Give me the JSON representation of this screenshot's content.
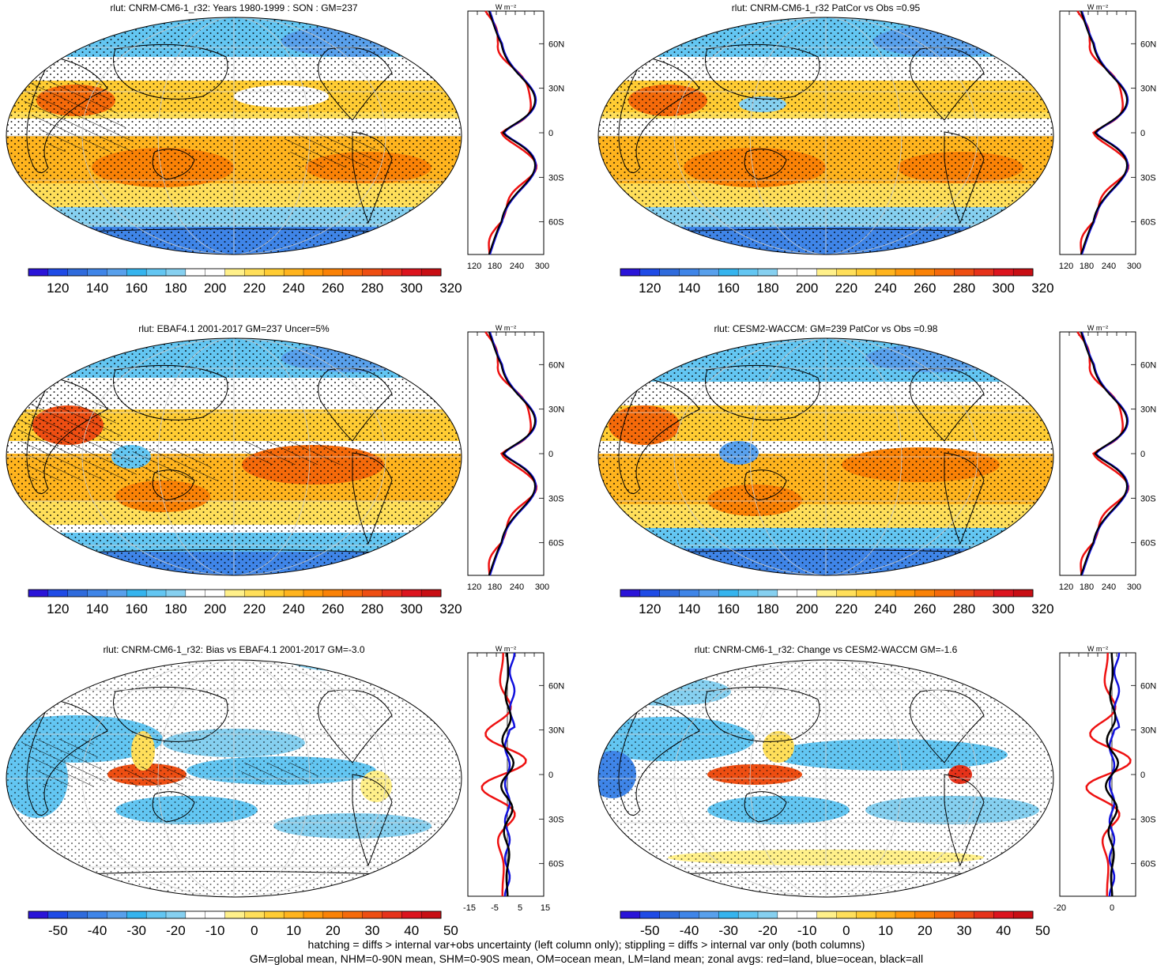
{
  "panels": [
    {
      "id": "p1",
      "title": "rlut: CNRM-CM6-1_r32: Years 1980-1999 : SON : GM=237",
      "kind": "abs",
      "stipple": true,
      "hatch": true
    },
    {
      "id": "p2",
      "title": "rlut: CNRM-CM6-1_r32 PatCor vs Obs =0.95",
      "kind": "abs",
      "stipple": true,
      "hatch": false
    },
    {
      "id": "p3",
      "title": "rlut: EBAF4.1 2001-2017 GM=237 Uncer=5%",
      "kind": "abs",
      "stipple": true,
      "hatch": true
    },
    {
      "id": "p4",
      "title": "rlut: CESM2-WACCM: GM=239 PatCor vs Obs =0.98",
      "kind": "abs",
      "stipple": true,
      "hatch": false
    },
    {
      "id": "p5",
      "title": "rlut: CNRM-CM6-1_r32: Bias vs EBAF4.1 2001-2017  GM=-3.0",
      "kind": "diff",
      "stipple": true,
      "hatch": true
    },
    {
      "id": "p6",
      "title": "rlut: CNRM-CM6-1_r32: Change vs CESM2-WACCM GM=-1.6",
      "kind": "diff",
      "stipple": true,
      "hatch": false
    }
  ],
  "profile_unit": "W m⁻²",
  "lat_labels": [
    "60N",
    "30N",
    "0",
    "30S",
    "60S"
  ],
  "profile_x_abs": [
    "120",
    "180",
    "240",
    "300"
  ],
  "profile_x_bias": [
    "-15",
    "-5",
    "5",
    "15"
  ],
  "profile_x_change": [
    "-20",
    "0"
  ],
  "colorbar_abs": {
    "labels": [
      "120",
      "140",
      "160",
      "180",
      "200",
      "220",
      "240",
      "260",
      "280",
      "300",
      "320"
    ],
    "colors": [
      "#2a14d8",
      "#1f4be6",
      "#2f6bdc",
      "#3f85e8",
      "#58a0ec",
      "#35b4ee",
      "#63c6f2",
      "#86d0f0",
      "#ffffff",
      "#ffffff",
      "#fff08a",
      "#ffdf5a",
      "#ffcc33",
      "#ffb41e",
      "#ff9a0c",
      "#fa8206",
      "#f56a0a",
      "#ee4e12",
      "#e6321a",
      "#dc141e",
      "#c80e14"
    ]
  },
  "colorbar_diff": {
    "labels": [
      "-50",
      "-40",
      "-30",
      "-20",
      "-10",
      "0",
      "10",
      "20",
      "30",
      "40",
      "50"
    ],
    "colors": [
      "#2a14d8",
      "#1f4be6",
      "#2f6bdc",
      "#3f85e8",
      "#58a0ec",
      "#35b4ee",
      "#63c6f2",
      "#86d0f0",
      "#ffffff",
      "#ffffff",
      "#fff08a",
      "#ffdf5a",
      "#ffcc33",
      "#ffb41e",
      "#ff9a0c",
      "#fa8206",
      "#f56a0a",
      "#ee4e12",
      "#e6321a",
      "#dc141e",
      "#c80e14"
    ]
  },
  "footer": {
    "line1": "hatching = diffs > internal var+obs uncertainty (left column only); stippling = diffs > internal var only (both columns)",
    "line2": "GM=global mean, NHM=0-90N mean, SHM=0-90S mean, OM=ocean mean, LM=land mean; zonal avgs: red=land, blue=ocean, black=all"
  },
  "line_colors": {
    "land": "#ee1111",
    "ocean": "#1111dd",
    "all": "#000000"
  }
}
